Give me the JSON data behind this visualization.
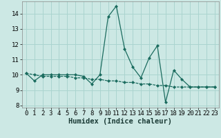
{
  "title": "",
  "xlabel": "Humidex (Indice chaleur)",
  "bg_color": "#cce8e4",
  "grid_color": "#aad4cf",
  "line_color": "#1a6b5e",
  "xlim": [
    -0.5,
    23.5
  ],
  "ylim": [
    7.85,
    14.8
  ],
  "yticks": [
    8,
    9,
    10,
    11,
    12,
    13,
    14
  ],
  "xticks": [
    0,
    1,
    2,
    3,
    4,
    5,
    6,
    7,
    8,
    9,
    10,
    11,
    12,
    13,
    14,
    15,
    16,
    17,
    18,
    19,
    20,
    21,
    22,
    23
  ],
  "series1_x": [
    0,
    1,
    2,
    3,
    4,
    5,
    6,
    7,
    8,
    9,
    10,
    11,
    12,
    13,
    14,
    15,
    16,
    17,
    18,
    19,
    20,
    21,
    22,
    23
  ],
  "series1_y": [
    10.1,
    9.6,
    10.0,
    10.0,
    10.0,
    10.0,
    10.0,
    9.9,
    9.4,
    10.0,
    13.8,
    14.5,
    11.7,
    10.5,
    9.8,
    11.1,
    11.9,
    8.2,
    10.3,
    9.7,
    9.2,
    9.2,
    9.2,
    9.2
  ],
  "series2_x": [
    0,
    1,
    2,
    3,
    4,
    5,
    6,
    7,
    8,
    9,
    10,
    11,
    12,
    13,
    14,
    15,
    16,
    17,
    18,
    19,
    20,
    21,
    22,
    23
  ],
  "series2_y": [
    10.1,
    10.0,
    9.9,
    9.9,
    9.9,
    9.9,
    9.8,
    9.8,
    9.7,
    9.7,
    9.6,
    9.6,
    9.5,
    9.5,
    9.4,
    9.4,
    9.3,
    9.3,
    9.2,
    9.2,
    9.2,
    9.2,
    9.2,
    9.2
  ],
  "tick_fontsize": 6.5,
  "xlabel_fontsize": 7.5
}
